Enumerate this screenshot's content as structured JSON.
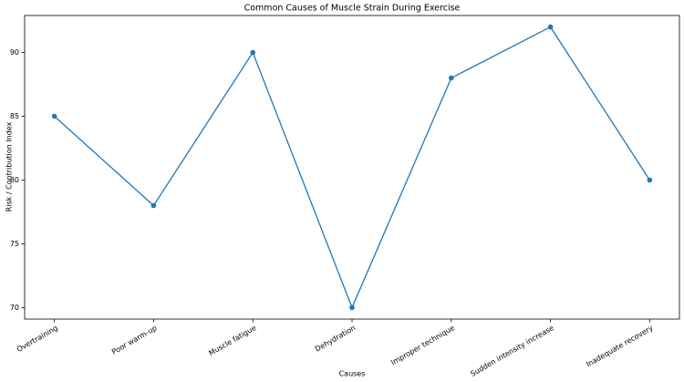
{
  "chart_data": {
    "type": "line",
    "title": "Common Causes of Muscle Strain During Exercise",
    "x_label": "Causes",
    "y_label": "Risk / Contribution Index",
    "categories": [
      "Overtraining",
      "Poor warm-up",
      "Muscle fatigue",
      "Dehydration",
      "Improper technique",
      "Sudden intensity increase",
      "Inadequate recovery"
    ],
    "series": [
      {
        "name": "Risk / Contribution Index",
        "color": "#1f77b4",
        "values": [
          85,
          78,
          90,
          70,
          88,
          92,
          80
        ]
      }
    ],
    "ylim": [
      69.1,
      92.9
    ],
    "yticks": [
      70,
      75,
      80,
      85,
      90
    ],
    "grid": false
  }
}
